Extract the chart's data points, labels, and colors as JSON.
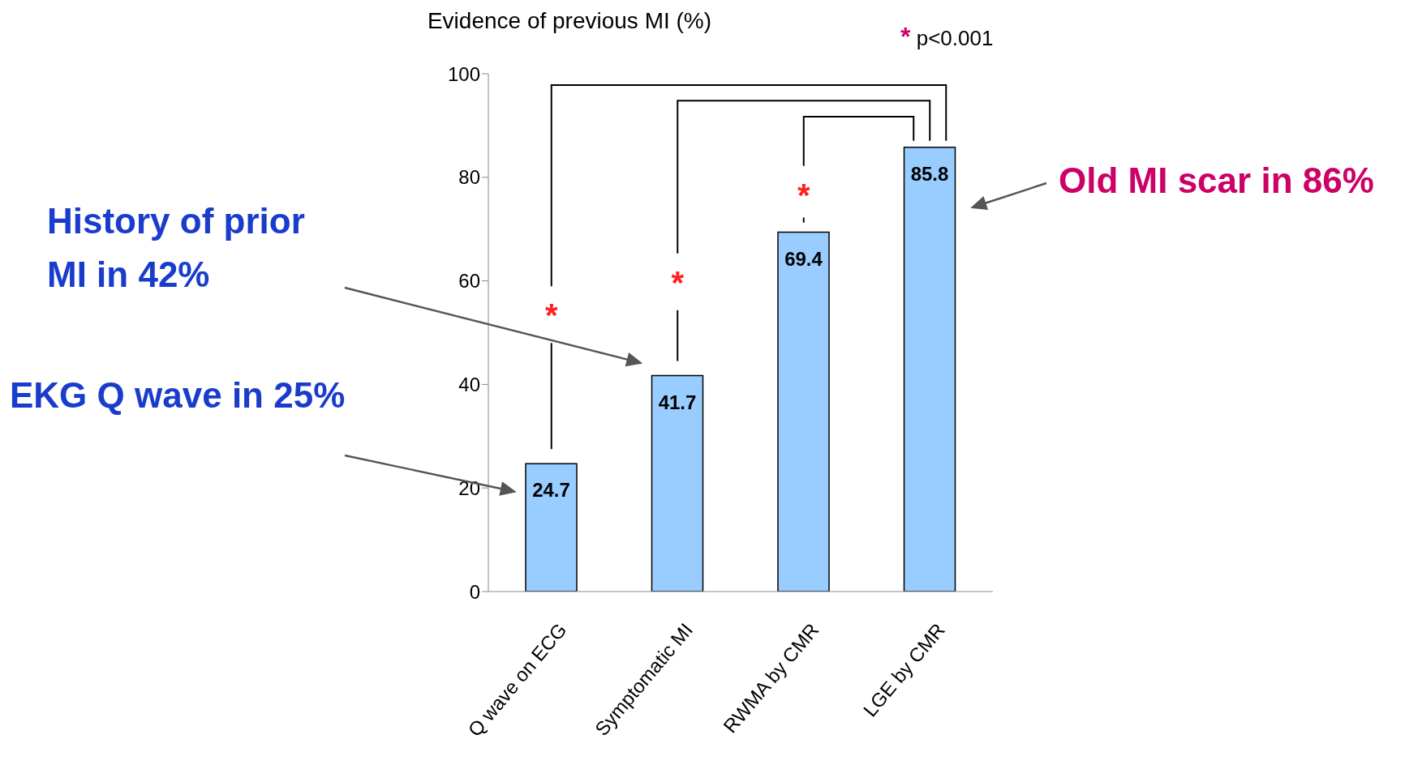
{
  "chart_data": {
    "type": "bar",
    "ylabel": "Evidence of previous MI (%)",
    "categories": [
      "Q wave on ECG",
      "Symptomatic  MI",
      "RWMA by CMR",
      "LGE by CMR"
    ],
    "values": [
      24.7,
      41.7,
      69.4,
      85.8
    ],
    "color": "#99ccff",
    "data_labels": true,
    "ylim": [
      0,
      100
    ],
    "yticks": [
      0,
      20,
      40,
      60,
      80,
      100
    ],
    "annotations": [
      "History of prior MI in 42%",
      "EKG Q wave in 25%",
      "Old MI scar in 86%",
      "*",
      "*",
      "*",
      "* p<0.001"
    ]
  }
}
